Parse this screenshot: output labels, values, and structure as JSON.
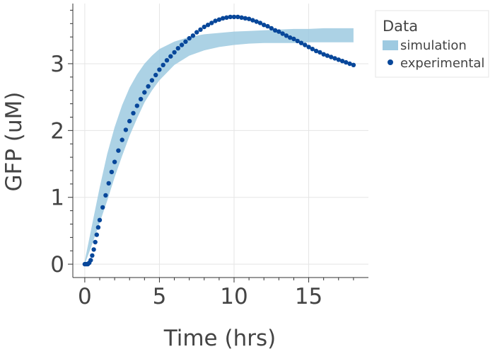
{
  "chart_data": {
    "type": "scatter",
    "xlabel": "Time (hrs)",
    "ylabel": "GFP (uM)",
    "xlim": [
      -0.8,
      19.0
    ],
    "ylim": [
      -0.2,
      3.9
    ],
    "x_ticks": [
      "0",
      "5",
      "10",
      "15"
    ],
    "x_tick_values": [
      0,
      5,
      10,
      15
    ],
    "y_ticks": [
      "0",
      "1",
      "2",
      "3"
    ],
    "y_tick_values": [
      0,
      1,
      2,
      3
    ],
    "grid": true,
    "legend": {
      "title": "Data",
      "placement": "top-right outside",
      "entries": [
        "simulation",
        "experimental"
      ]
    },
    "series": [
      {
        "name": "simulation",
        "kind": "band",
        "color": "#9ecae1",
        "x": [
          0,
          0.5,
          1,
          1.5,
          2,
          2.5,
          3,
          3.5,
          4,
          4.5,
          5,
          6,
          7,
          8,
          9,
          10,
          11,
          12,
          13,
          14,
          15,
          16,
          17,
          18
        ],
        "lower": [
          0.0,
          0.3,
          0.62,
          0.95,
          1.3,
          1.62,
          1.92,
          2.18,
          2.42,
          2.6,
          2.75,
          2.98,
          3.12,
          3.2,
          3.25,
          3.28,
          3.3,
          3.31,
          3.31,
          3.31,
          3.32,
          3.32,
          3.32,
          3.32
        ],
        "upper": [
          0.05,
          0.6,
          1.15,
          1.65,
          2.05,
          2.38,
          2.64,
          2.84,
          3.0,
          3.12,
          3.22,
          3.33,
          3.4,
          3.44,
          3.46,
          3.48,
          3.49,
          3.5,
          3.51,
          3.52,
          3.52,
          3.53,
          3.53,
          3.53
        ]
      },
      {
        "name": "experimental",
        "kind": "scatter",
        "color": "#08479a",
        "x": [
          0.0,
          0.1,
          0.2,
          0.3,
          0.4,
          0.5,
          0.6,
          0.7,
          0.8,
          0.9,
          1.0,
          1.2,
          1.4,
          1.6,
          1.8,
          2.0,
          2.25,
          2.5,
          2.75,
          3.0,
          3.25,
          3.5,
          3.75,
          4.0,
          4.25,
          4.5,
          4.75,
          5.0,
          5.25,
          5.5,
          5.75,
          6.0,
          6.25,
          6.5,
          6.75,
          7.0,
          7.25,
          7.5,
          7.75,
          8.0,
          8.25,
          8.5,
          8.75,
          9.0,
          9.25,
          9.5,
          9.75,
          10.0,
          10.25,
          10.5,
          10.75,
          11.0,
          11.25,
          11.5,
          11.75,
          12.0,
          12.25,
          12.5,
          12.75,
          13.0,
          13.25,
          13.5,
          13.75,
          14.0,
          14.25,
          14.5,
          14.75,
          15.0,
          15.25,
          15.5,
          15.75,
          16.0,
          16.25,
          16.5,
          16.75,
          17.0,
          17.25,
          17.5,
          17.75,
          18.0
        ],
        "y": [
          0.0,
          0.0,
          0.0,
          0.02,
          0.06,
          0.13,
          0.22,
          0.33,
          0.44,
          0.55,
          0.66,
          0.85,
          1.03,
          1.21,
          1.38,
          1.53,
          1.7,
          1.86,
          2.01,
          2.14,
          2.26,
          2.37,
          2.47,
          2.57,
          2.66,
          2.75,
          2.83,
          2.91,
          2.98,
          3.05,
          3.11,
          3.17,
          3.23,
          3.28,
          3.33,
          3.38,
          3.42,
          3.47,
          3.51,
          3.55,
          3.58,
          3.61,
          3.64,
          3.66,
          3.68,
          3.69,
          3.7,
          3.7,
          3.7,
          3.69,
          3.68,
          3.67,
          3.65,
          3.63,
          3.61,
          3.58,
          3.56,
          3.53,
          3.5,
          3.48,
          3.45,
          3.42,
          3.39,
          3.37,
          3.34,
          3.31,
          3.28,
          3.25,
          3.22,
          3.19,
          3.17,
          3.14,
          3.12,
          3.1,
          3.08,
          3.06,
          3.04,
          3.02,
          3.0,
          2.98
        ]
      }
    ]
  }
}
